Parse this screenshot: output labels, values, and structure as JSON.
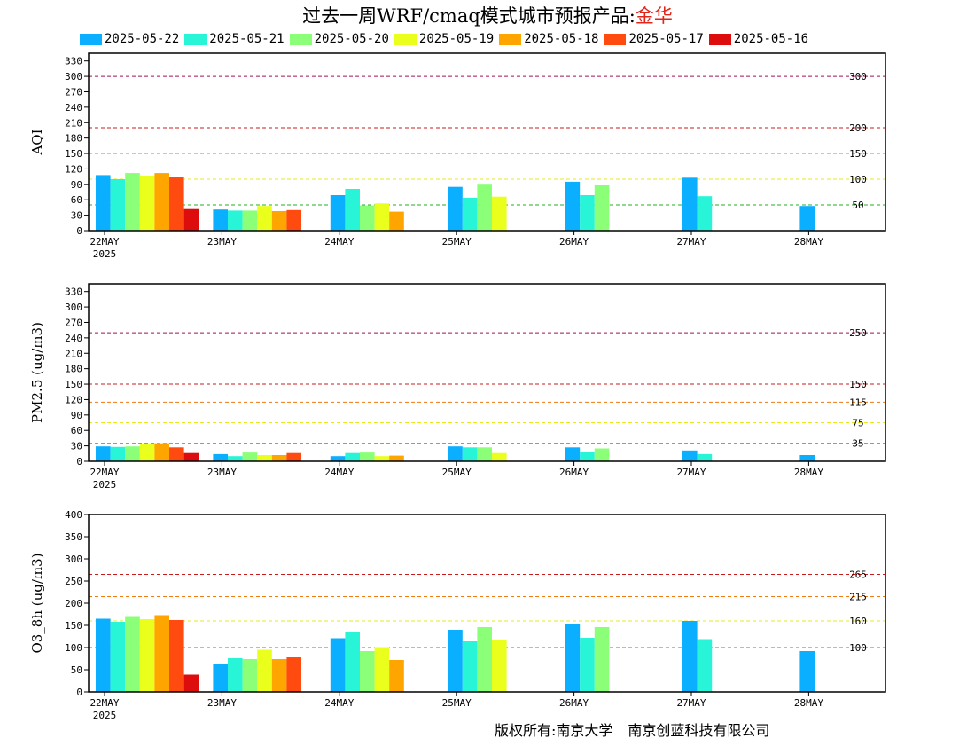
{
  "title": {
    "prefix": "过去一周WRF/cmaq模式城市预报产品:",
    "city": "金华"
  },
  "legend": [
    {
      "name": "2025-05-22",
      "color": "#0aafff"
    },
    {
      "name": "2025-05-21",
      "color": "#28f5d8"
    },
    {
      "name": "2025-05-20",
      "color": "#8cff78"
    },
    {
      "name": "2025-05-19",
      "color": "#eaff1c"
    },
    {
      "name": "2025-05-18",
      "color": "#ffa500"
    },
    {
      "name": "2025-05-17",
      "color": "#ff4a10"
    },
    {
      "name": "2025-05-16",
      "color": "#dd0d0d"
    }
  ],
  "x_ticks": [
    "22MAY",
    "23MAY",
    "24MAY",
    "25MAY",
    "26MAY",
    "27MAY",
    "28MAY"
  ],
  "x_year": "2025",
  "chart_data": [
    {
      "type": "bar",
      "ylabel": "AQI",
      "ylim": [
        0,
        345
      ],
      "yticks": [
        0,
        30,
        60,
        90,
        120,
        150,
        180,
        210,
        240,
        270,
        300,
        330
      ],
      "ref_lines": [
        {
          "value": 300,
          "label": "300",
          "color": "#a0105a"
        },
        {
          "value": 200,
          "label": "200",
          "color": "#c81c1c"
        },
        {
          "value": 150,
          "label": "150",
          "color": "#ee7a10"
        },
        {
          "value": 100,
          "label": "100",
          "color": "#e8e81c"
        },
        {
          "value": 50,
          "label": "50",
          "color": "#20b020"
        }
      ],
      "groups": [
        [
          108,
          100,
          112,
          107,
          112,
          105,
          42
        ],
        [
          41,
          39,
          39,
          48,
          38,
          40,
          null
        ],
        [
          69,
          81,
          49,
          53,
          37,
          null,
          null
        ],
        [
          85,
          64,
          91,
          66,
          null,
          null,
          null
        ],
        [
          95,
          69,
          89,
          null,
          null,
          null,
          null
        ],
        [
          103,
          67,
          null,
          null,
          null,
          null,
          null
        ],
        [
          48,
          null,
          null,
          null,
          null,
          null,
          null
        ]
      ]
    },
    {
      "type": "bar",
      "ylabel": "PM2.5 (ug/m3)",
      "ylim": [
        0,
        345
      ],
      "yticks": [
        0,
        30,
        60,
        90,
        120,
        150,
        180,
        210,
        240,
        270,
        300,
        330
      ],
      "ref_lines": [
        {
          "value": 250,
          "label": "250",
          "color": "#a0105a"
        },
        {
          "value": 150,
          "label": "150",
          "color": "#c81c1c"
        },
        {
          "value": 115,
          "label": "115",
          "color": "#ee7a10"
        },
        {
          "value": 75,
          "label": "75",
          "color": "#e8e81c"
        },
        {
          "value": 35,
          "label": "35",
          "color": "#20b020"
        }
      ],
      "groups": [
        [
          29,
          28,
          29,
          33,
          35,
          27,
          16
        ],
        [
          14,
          10,
          17,
          12,
          12,
          16,
          null
        ],
        [
          10,
          16,
          17,
          10,
          11,
          null,
          null
        ],
        [
          29,
          27,
          27,
          16,
          null,
          null,
          null
        ],
        [
          27,
          19,
          25,
          null,
          null,
          null,
          null
        ],
        [
          21,
          14,
          null,
          null,
          null,
          null,
          null
        ],
        [
          12,
          null,
          null,
          null,
          null,
          null,
          null
        ]
      ]
    },
    {
      "type": "bar",
      "ylabel": "O3_8h (ug/m3)",
      "ylim": [
        0,
        400
      ],
      "yticks": [
        0,
        50,
        100,
        150,
        200,
        250,
        300,
        350,
        400
      ],
      "ref_lines": [
        {
          "value": 265,
          "label": "265",
          "color": "#c81c1c"
        },
        {
          "value": 215,
          "label": "215",
          "color": "#ee7a10"
        },
        {
          "value": 160,
          "label": "160",
          "color": "#e8e81c"
        },
        {
          "value": 100,
          "label": "100",
          "color": "#20b020"
        }
      ],
      "groups": [
        [
          165,
          158,
          171,
          164,
          173,
          162,
          39
        ],
        [
          63,
          76,
          74,
          95,
          74,
          78,
          null
        ],
        [
          121,
          136,
          92,
          101,
          72,
          null,
          null
        ],
        [
          140,
          114,
          146,
          118,
          null,
          null,
          null
        ],
        [
          154,
          122,
          146,
          null,
          null,
          null,
          null
        ],
        [
          160,
          119,
          null,
          null,
          null,
          null,
          null
        ],
        [
          92,
          null,
          null,
          null,
          null,
          null,
          null
        ]
      ]
    }
  ],
  "footer": {
    "left": "版权所有:南京大学",
    "right": "南京创蓝科技有限公司"
  }
}
